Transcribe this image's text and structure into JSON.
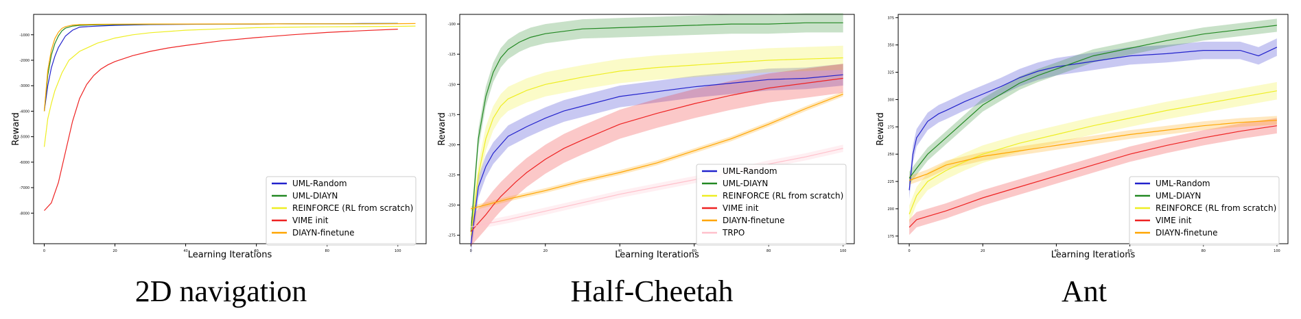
{
  "chart_data": [
    {
      "type": "line",
      "title": "2D navigation",
      "xlabel": "Learning Iterations",
      "ylabel": "Reward",
      "xlim": [
        -3,
        108
      ],
      "ylim": [
        -9200,
        -200
      ],
      "xticks": [
        0,
        20,
        40,
        60,
        80,
        100
      ],
      "yticks": [
        -1000,
        -2000,
        -3000,
        -4000,
        -5000,
        -6000,
        -7000,
        -8000
      ],
      "grid": false,
      "legend_position": "lower-right",
      "series": [
        {
          "name": "UML-Random",
          "color": "#2222cc",
          "band": false,
          "x": [
            0,
            1,
            2,
            3,
            4,
            6,
            8,
            10,
            15,
            20,
            30,
            40,
            50,
            60,
            70,
            80,
            90,
            100
          ],
          "y": [
            -4000,
            -3000,
            -2300,
            -1850,
            -1500,
            -1050,
            -820,
            -700,
            -660,
            -630,
            -600,
            -590,
            -580,
            -580,
            -570,
            -570,
            -560,
            -560
          ]
        },
        {
          "name": "UML-DIAYN",
          "color": "#228822",
          "band": false,
          "x": [
            0,
            1,
            2,
            3,
            4,
            5,
            6,
            8,
            10,
            15,
            20,
            30,
            40,
            50,
            60,
            70,
            80,
            90,
            100
          ],
          "y": [
            -4000,
            -2600,
            -1800,
            -1350,
            -1050,
            -850,
            -740,
            -660,
            -630,
            -610,
            -600,
            -590,
            -580,
            -580,
            -575,
            -570,
            -570,
            -565,
            -560
          ]
        },
        {
          "name": "REINFORCE (RL from scratch)",
          "color": "#eeee22",
          "band": false,
          "x": [
            0,
            1,
            2,
            3,
            5,
            7,
            10,
            15,
            20,
            25,
            30,
            40,
            50,
            60,
            70,
            80,
            90,
            100,
            105
          ],
          "y": [
            -5400,
            -4300,
            -3700,
            -3200,
            -2500,
            -2000,
            -1650,
            -1330,
            -1130,
            -1000,
            -920,
            -820,
            -770,
            -720,
            -700,
            -690,
            -680,
            -670,
            -660
          ]
        },
        {
          "name": "VIME init",
          "color": "#ee2222",
          "band": false,
          "x": [
            0,
            2,
            4,
            6,
            8,
            10,
            12,
            14,
            16,
            18,
            20,
            25,
            30,
            35,
            40,
            50,
            60,
            70,
            80,
            90,
            100
          ],
          "y": [
            -7900,
            -7600,
            -6800,
            -5600,
            -4400,
            -3500,
            -2950,
            -2600,
            -2350,
            -2180,
            -2050,
            -1820,
            -1650,
            -1520,
            -1420,
            -1240,
            -1110,
            -1000,
            -910,
            -840,
            -780
          ]
        },
        {
          "name": "DIAYN-finetune",
          "color": "#ffa500",
          "band": false,
          "x": [
            0,
            1,
            2,
            3,
            4,
            5,
            6,
            8,
            10,
            15,
            20,
            30,
            40,
            50,
            60,
            70,
            80,
            90,
            100,
            105
          ],
          "y": [
            -4000,
            -2400,
            -1600,
            -1150,
            -900,
            -750,
            -680,
            -620,
            -600,
            -590,
            -585,
            -580,
            -580,
            -575,
            -575,
            -570,
            -570,
            -570,
            -565,
            -560
          ]
        }
      ]
    },
    {
      "type": "line",
      "title": "Half-Cheetah",
      "xlabel": "Learning Iterations",
      "ylabel": "Reward",
      "xlim": [
        -3,
        103
      ],
      "ylim": [
        -282,
        -92
      ],
      "xticks": [
        0,
        20,
        40,
        60,
        80,
        100
      ],
      "yticks": [
        -100,
        -125,
        -150,
        -175,
        -200,
        -225,
        -250,
        -275
      ],
      "grid": false,
      "legend_position": "lower-right",
      "series": [
        {
          "name": "UML-Random",
          "color": "#2222cc",
          "band": true,
          "band_width": 9,
          "x": [
            0,
            2,
            4,
            6,
            8,
            10,
            15,
            20,
            25,
            30,
            40,
            50,
            60,
            70,
            80,
            90,
            100
          ],
          "y": [
            -282,
            -235,
            -218,
            -207,
            -200,
            -193,
            -185,
            -178,
            -172,
            -168,
            -160,
            -156,
            -152,
            -149,
            -146,
            -145,
            -142
          ]
        },
        {
          "name": "UML-DIAYN",
          "color": "#228822",
          "band": true,
          "band_width": 8,
          "x": [
            0,
            2,
            4,
            6,
            8,
            10,
            13,
            16,
            20,
            25,
            30,
            40,
            50,
            60,
            70,
            80,
            90,
            100
          ],
          "y": [
            -272,
            -195,
            -160,
            -140,
            -128,
            -121,
            -115,
            -111,
            -108,
            -106,
            -104,
            -103,
            -102,
            -101,
            -100,
            -100,
            -99,
            -99
          ]
        },
        {
          "name": "REINFORCE (RL from scratch)",
          "color": "#eeee22",
          "band": true,
          "band_width": 10,
          "x": [
            0,
            2,
            4,
            6,
            8,
            10,
            15,
            20,
            25,
            30,
            40,
            50,
            60,
            70,
            80,
            90,
            100
          ],
          "y": [
            -275,
            -225,
            -195,
            -178,
            -168,
            -162,
            -155,
            -150,
            -147,
            -144,
            -139,
            -136,
            -134,
            -132,
            -130,
            -129,
            -128
          ]
        },
        {
          "name": "VIME init",
          "color": "#ee2222",
          "band": true,
          "band_width": 12,
          "x": [
            0,
            2,
            4,
            6,
            8,
            10,
            12,
            15,
            20,
            25,
            30,
            40,
            50,
            60,
            70,
            80,
            90,
            100
          ],
          "y": [
            -272,
            -265,
            -258,
            -250,
            -243,
            -237,
            -231,
            -223,
            -212,
            -203,
            -196,
            -183,
            -174,
            -166,
            -159,
            -153,
            -149,
            -145
          ]
        },
        {
          "name": "DIAYN-finetune",
          "color": "#ffa500",
          "band": true,
          "band_width": 2,
          "x": [
            0,
            10,
            20,
            30,
            40,
            50,
            60,
            70,
            80,
            90,
            100
          ],
          "y": [
            -253,
            -245,
            -238,
            -230,
            -223,
            -215,
            -205,
            -195,
            -183,
            -170,
            -158
          ]
        },
        {
          "name": "TRPO",
          "color": "#ffc0cb",
          "band": true,
          "band_width": 3,
          "x": [
            0,
            10,
            20,
            30,
            40,
            50,
            60,
            70,
            80,
            90,
            100
          ],
          "y": [
            -268,
            -262,
            -255,
            -248,
            -241,
            -235,
            -229,
            -223,
            -216,
            -210,
            -203
          ]
        }
      ]
    },
    {
      "type": "line",
      "title": "Ant",
      "xlabel": "Learning Iterations",
      "ylabel": "Reward",
      "xlim": [
        -3,
        103
      ],
      "ylim": [
        168,
        378
      ],
      "xticks": [
        0,
        20,
        40,
        60,
        80,
        100
      ],
      "yticks": [
        175,
        200,
        225,
        250,
        275,
        300,
        325,
        350,
        375
      ],
      "grid": false,
      "legend_position": "lower-right",
      "series": [
        {
          "name": "UML-Random",
          "color": "#2222cc",
          "band": true,
          "band_width": 8,
          "x": [
            0,
            1,
            2,
            3,
            5,
            8,
            10,
            15,
            20,
            25,
            30,
            35,
            40,
            50,
            60,
            70,
            80,
            90,
            95,
            100
          ],
          "y": [
            217,
            250,
            265,
            270,
            280,
            287,
            290,
            298,
            305,
            312,
            320,
            326,
            330,
            335,
            340,
            342,
            345,
            345,
            340,
            348
          ]
        },
        {
          "name": "UML-DIAYN",
          "color": "#228822",
          "band": true,
          "band_width": 6,
          "x": [
            0,
            2,
            5,
            10,
            15,
            20,
            25,
            30,
            35,
            40,
            50,
            60,
            70,
            80,
            90,
            100
          ],
          "y": [
            228,
            237,
            250,
            265,
            280,
            295,
            305,
            315,
            322,
            328,
            340,
            347,
            354,
            360,
            364,
            368
          ]
        },
        {
          "name": "REINFORCE (RL from scratch)",
          "color": "#eeee22",
          "band": true,
          "band_width": 8,
          "x": [
            0,
            2,
            5,
            10,
            15,
            20,
            30,
            40,
            50,
            60,
            70,
            80,
            90,
            100
          ],
          "y": [
            195,
            212,
            225,
            235,
            243,
            250,
            260,
            268,
            276,
            283,
            290,
            296,
            302,
            308
          ]
        },
        {
          "name": "VIME init",
          "color": "#ee2222",
          "band": true,
          "band_width": 7,
          "x": [
            0,
            2,
            5,
            10,
            15,
            20,
            30,
            40,
            50,
            60,
            70,
            80,
            90,
            100
          ],
          "y": [
            183,
            190,
            193,
            198,
            204,
            210,
            220,
            230,
            240,
            250,
            258,
            265,
            271,
            276
          ]
        },
        {
          "name": "DIAYN-finetune",
          "color": "#ffa500",
          "band": true,
          "band_width": 4,
          "x": [
            0,
            5,
            10,
            20,
            30,
            40,
            50,
            60,
            70,
            80,
            90,
            100
          ],
          "y": [
            226,
            232,
            240,
            248,
            253,
            258,
            263,
            268,
            272,
            276,
            279,
            281
          ]
        }
      ]
    }
  ],
  "captions": [
    "2D navigation",
    "Half-Cheetah",
    "Ant"
  ]
}
